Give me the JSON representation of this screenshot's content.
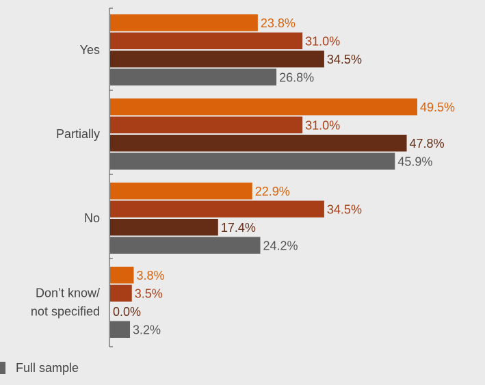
{
  "chart_data": {
    "type": "bar",
    "orientation": "horizontal",
    "categories": [
      "Yes",
      "Partially",
      "No",
      "Don’t know/\nnot specified"
    ],
    "series": [
      {
        "values": [
          23.8,
          49.5,
          22.9,
          3.8
        ],
        "color": "#d9620b"
      },
      {
        "values": [
          31.0,
          31.0,
          34.5,
          3.5
        ],
        "color": "#a73e18"
      },
      {
        "values": [
          34.5,
          47.8,
          17.4,
          0.0
        ],
        "color": "#652d16"
      },
      {
        "name": "Full sample",
        "values": [
          26.8,
          45.9,
          24.2,
          3.2
        ],
        "color": "#636363"
      }
    ],
    "value_labels": [
      [
        "23.8%",
        "49.5%",
        "22.9%",
        "3.8%"
      ],
      [
        "31.0%",
        "31.0%",
        "34.5%",
        "3.5%"
      ],
      [
        "34.5%",
        "47.8%",
        "17.4%",
        "0.0%"
      ],
      [
        "26.8%",
        "45.9%",
        "24.2%",
        "3.2%"
      ]
    ],
    "label_colors": [
      "#d9620b",
      "#a73e18",
      "#652d16",
      "#555555"
    ],
    "xlim": [
      0,
      50
    ],
    "grid": false,
    "legend_position": "bottom-left",
    "legend": [
      {
        "label": "Full sample",
        "color": "#636363"
      }
    ]
  }
}
